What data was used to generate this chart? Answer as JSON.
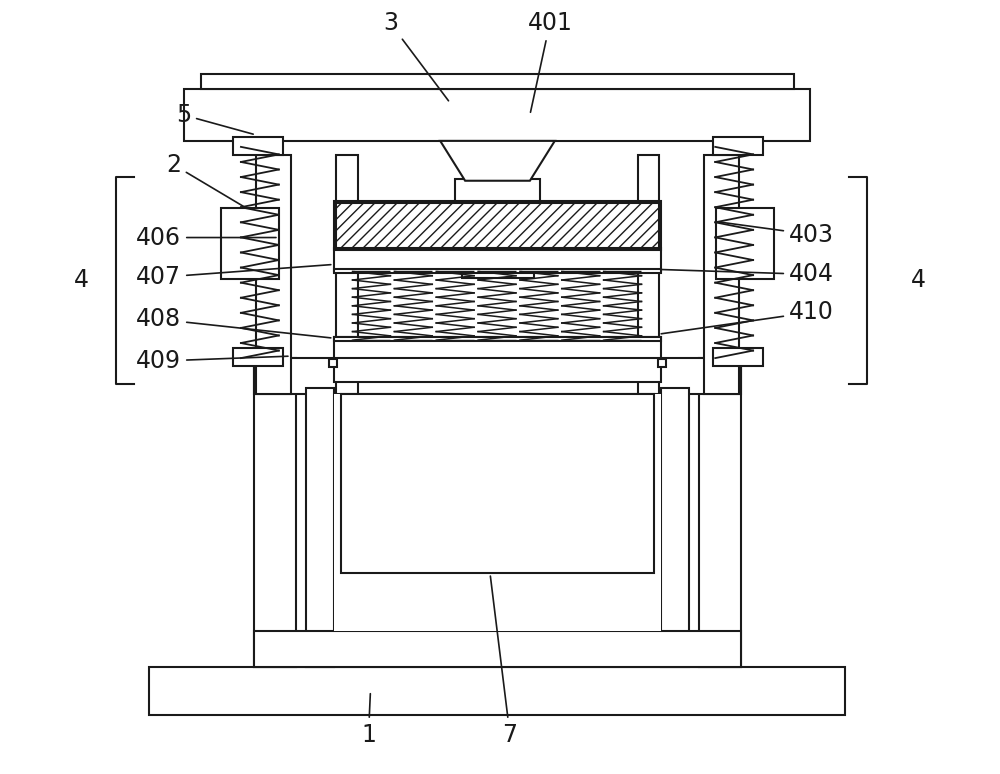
{
  "bg_color": "#ffffff",
  "lc": "#1a1a1a",
  "lw": 1.5,
  "lw_thin": 1.0,
  "fig_w": 10.0,
  "fig_h": 7.74,
  "fs": 17
}
